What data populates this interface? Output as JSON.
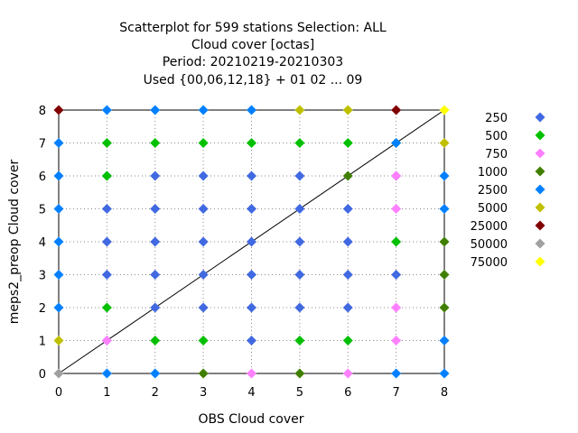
{
  "chart_data": {
    "type": "scatter",
    "title_lines": [
      "Scatterplot for  599 stations Selection: ALL",
      "Cloud cover [octas]",
      "Period: 20210219-20210303",
      "Used {00,06,12,18} + 01 02 ... 09"
    ],
    "xlabel": "OBS Cloud cover",
    "ylabel": "meps2_preop Cloud cover",
    "xlim": [
      0,
      8
    ],
    "ylim": [
      0,
      8
    ],
    "xticks": [
      "0",
      "1",
      "2",
      "3",
      "4",
      "5",
      "6",
      "7",
      "8"
    ],
    "yticks": [
      "0",
      "1",
      "2",
      "3",
      "4",
      "5",
      "6",
      "7",
      "8"
    ],
    "grid": true,
    "diagonal_line": true,
    "legend_placement": "right",
    "series": [
      {
        "name": "250",
        "color": "#4169e1",
        "points": [
          [
            1,
            1
          ],
          [
            1,
            3
          ],
          [
            1,
            4
          ],
          [
            1,
            5
          ],
          [
            1,
            6
          ],
          [
            2,
            2
          ],
          [
            2,
            3
          ],
          [
            2,
            4
          ],
          [
            2,
            5
          ],
          [
            2,
            6
          ],
          [
            3,
            2
          ],
          [
            3,
            3
          ],
          [
            3,
            4
          ],
          [
            3,
            5
          ],
          [
            3,
            6
          ],
          [
            4,
            1
          ],
          [
            4,
            2
          ],
          [
            4,
            3
          ],
          [
            4,
            4
          ],
          [
            4,
            5
          ],
          [
            4,
            6
          ],
          [
            5,
            2
          ],
          [
            5,
            3
          ],
          [
            5,
            4
          ],
          [
            5,
            5
          ],
          [
            5,
            6
          ],
          [
            6,
            2
          ],
          [
            6,
            3
          ],
          [
            6,
            4
          ],
          [
            6,
            5
          ],
          [
            7,
            3
          ],
          [
            7,
            6
          ]
        ]
      },
      {
        "name": "500",
        "color": "#00c000",
        "points": [
          [
            1,
            2
          ],
          [
            1,
            6
          ],
          [
            1,
            7
          ],
          [
            2,
            1
          ],
          [
            2,
            7
          ],
          [
            3,
            1
          ],
          [
            3,
            7
          ],
          [
            4,
            7
          ],
          [
            5,
            1
          ],
          [
            5,
            7
          ],
          [
            6,
            1
          ],
          [
            6,
            7
          ],
          [
            7,
            4
          ],
          [
            7,
            7
          ]
        ]
      },
      {
        "name": "750",
        "color": "#ff80ff",
        "points": [
          [
            1,
            1
          ],
          [
            4,
            0
          ],
          [
            6,
            0
          ],
          [
            7,
            1
          ],
          [
            7,
            2
          ],
          [
            7,
            5
          ],
          [
            7,
            6
          ]
        ]
      },
      {
        "name": "1000",
        "color": "#408000",
        "points": [
          [
            3,
            0
          ],
          [
            5,
            0
          ],
          [
            6,
            6
          ],
          [
            8,
            2
          ],
          [
            8,
            3
          ],
          [
            8,
            4
          ]
        ]
      },
      {
        "name": "2500",
        "color": "#0080ff",
        "points": [
          [
            0,
            2
          ],
          [
            0,
            3
          ],
          [
            0,
            4
          ],
          [
            0,
            5
          ],
          [
            0,
            6
          ],
          [
            0,
            7
          ],
          [
            1,
            0
          ],
          [
            1,
            8
          ],
          [
            2,
            0
          ],
          [
            2,
            8
          ],
          [
            3,
            8
          ],
          [
            4,
            8
          ],
          [
            7,
            0
          ],
          [
            7,
            7
          ],
          [
            8,
            0
          ],
          [
            8,
            1
          ],
          [
            8,
            5
          ],
          [
            8,
            6
          ]
        ]
      },
      {
        "name": "5000",
        "color": "#c0c000",
        "points": [
          [
            0,
            1
          ],
          [
            5,
            8
          ],
          [
            6,
            8
          ],
          [
            8,
            7
          ]
        ]
      },
      {
        "name": "25000",
        "color": "#800000",
        "points": [
          [
            0,
            8
          ],
          [
            7,
            8
          ]
        ]
      },
      {
        "name": "50000",
        "color": "#a0a0a0",
        "points": [
          [
            0,
            0
          ]
        ]
      },
      {
        "name": "75000",
        "color": "#ffff00",
        "points": [
          [
            8,
            8
          ]
        ]
      }
    ]
  }
}
